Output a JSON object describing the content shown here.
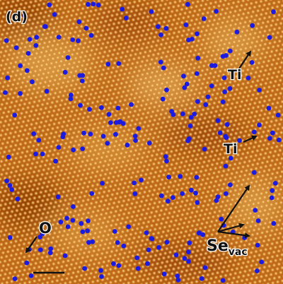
{
  "panel_label": "(d)",
  "annotations": [
    {
      "text": "Ti"
    },
    {
      "text": "Ti"
    },
    {
      "text": "O"
    },
    {
      "text": "Se",
      "subscript": "vac"
    }
  ]
}
